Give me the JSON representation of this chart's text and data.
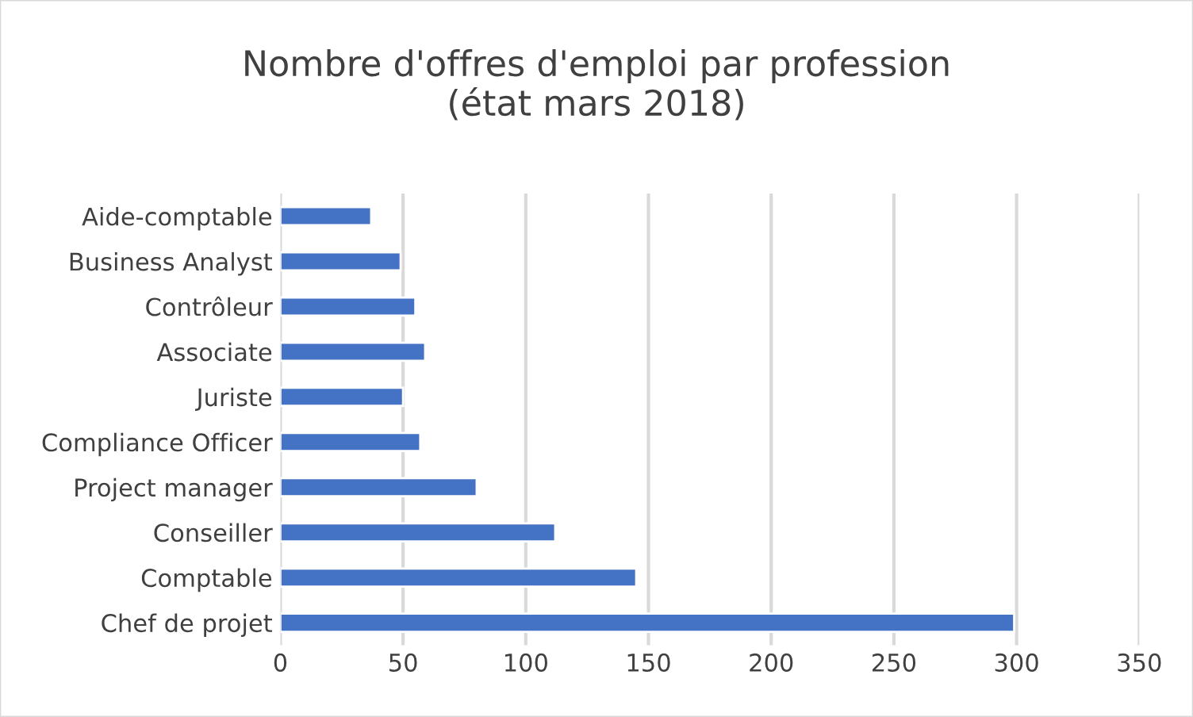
{
  "chart_data": {
    "type": "bar",
    "orientation": "horizontal",
    "title": "Nombre d'offres d'emploi par profession\n(état mars 2018)",
    "categories": [
      "Aide-comptable",
      "Business Analyst",
      "Contrôleur",
      "Associate",
      "Juriste",
      "Compliance Officer",
      "Project manager",
      "Conseiller",
      "Comptable",
      "Chef de projet"
    ],
    "values": [
      37,
      49,
      55,
      59,
      50,
      57,
      80,
      112,
      145,
      299
    ],
    "color": "#4472c4",
    "xlim": [
      0,
      350
    ],
    "xticks": [
      0,
      50,
      100,
      150,
      200,
      250,
      300,
      350
    ],
    "grid": "x"
  }
}
